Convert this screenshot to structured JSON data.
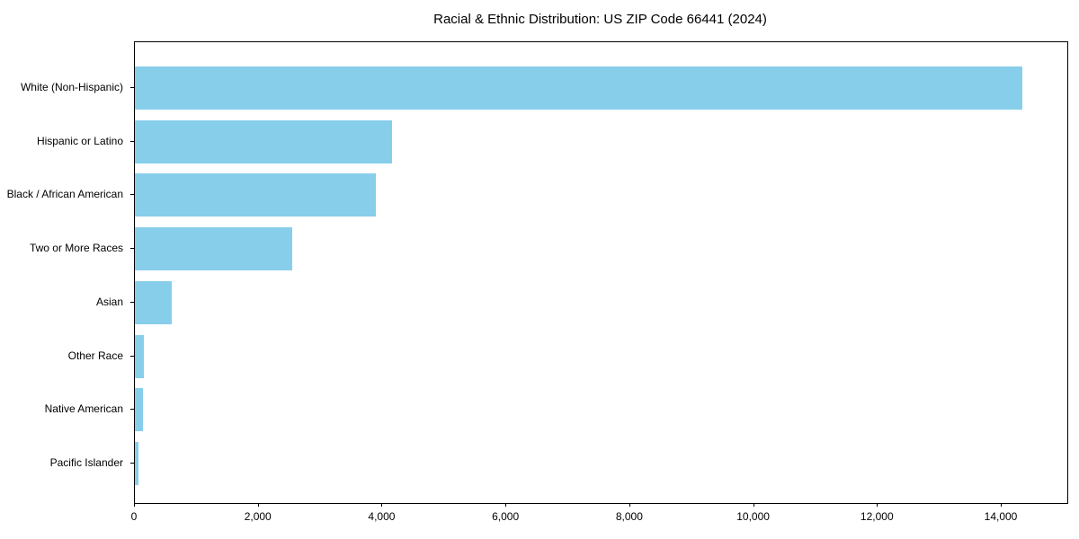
{
  "title": "Racial & Ethnic Distribution: US ZIP Code 66441 (2024)",
  "chart_data": {
    "type": "bar",
    "orientation": "horizontal",
    "title": "Racial & Ethnic Distribution: US ZIP Code 66441 (2024)",
    "categories": [
      "White (Non-Hispanic)",
      "Hispanic or Latino",
      "Black / African American",
      "Two or More Races",
      "Asian",
      "Other Race",
      "Native American",
      "Pacific Islander"
    ],
    "values": [
      14340,
      4150,
      3890,
      2540,
      600,
      145,
      130,
      58
    ],
    "xlabel": "",
    "ylabel": "",
    "xlim": [
      0,
      15060
    ],
    "xticks": [
      0,
      2000,
      4000,
      6000,
      8000,
      10000,
      12000,
      14000
    ],
    "xtick_labels": [
      "0",
      "2,000",
      "4,000",
      "6,000",
      "8,000",
      "10,000",
      "12,000",
      "14,000"
    ],
    "grid": false,
    "legend": "none",
    "bar_color": "#87CEEB",
    "axis_color": "#000000",
    "background_color": "#FFFFFF"
  }
}
